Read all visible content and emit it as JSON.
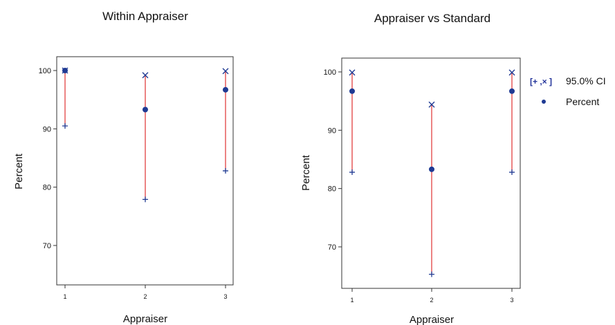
{
  "colors": {
    "marker": "#1f3a93",
    "interval": "#e03030",
    "frame": "#333333"
  },
  "legend": {
    "ci_symbol": "[+ ,× ]",
    "ci_label": "95.0% CI",
    "percent_symbol": "•",
    "percent_label": "Percent"
  },
  "chart_data": [
    {
      "type": "scatter",
      "title": "Within Appraiser",
      "xlabel": "Appraiser",
      "ylabel": "Percent",
      "categories": [
        "1",
        "2",
        "3"
      ],
      "yticks": [
        70,
        80,
        90,
        100
      ],
      "ylim": [
        63,
        102.5
      ],
      "percent": [
        100,
        93.3,
        96.7
      ],
      "ci_lower": [
        90.5,
        77.9,
        82.8
      ],
      "ci_upper": [
        100,
        99.2,
        99.9
      ]
    },
    {
      "type": "scatter",
      "title": "Appraiser vs Standard",
      "xlabel": "Appraiser",
      "ylabel": "Percent",
      "categories": [
        "1",
        "2",
        "3"
      ],
      "yticks": [
        70,
        80,
        90,
        100
      ],
      "ylim": [
        63,
        102.5
      ],
      "percent": [
        96.7,
        83.3,
        96.7
      ],
      "ci_lower": [
        82.8,
        65.3,
        82.8
      ],
      "ci_upper": [
        99.9,
        94.4,
        99.9
      ]
    }
  ]
}
